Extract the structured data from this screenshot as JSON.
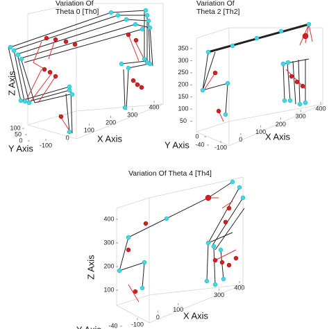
{
  "chart_data": [
    {
      "type": "line3d",
      "title": [
        "Variation Of",
        "Theta 0 [Th0]"
      ],
      "xlabel": "X Axis",
      "ylabel": "Y Axis",
      "zlabel": "Z Axis",
      "xlim": [
        -100,
        400
      ],
      "xticks": [
        -100,
        0,
        100,
        200,
        300,
        400
      ],
      "ylim": [
        0,
        100
      ],
      "yticks": [
        0,
        50,
        100
      ]
    },
    {
      "type": "line3d",
      "title": [
        "Variation Of",
        "Theta 2 [Th2]"
      ],
      "xlabel": "X Axis",
      "ylabel": "Y Axis",
      "xlim": [
        -100,
        400
      ],
      "xticks": [
        -100,
        0,
        100,
        200,
        300,
        400
      ],
      "ylim": [
        -40,
        0
      ],
      "yticks": [
        -40,
        0
      ],
      "zlim": [
        0,
        350
      ],
      "zticks": [
        50,
        100,
        150,
        200,
        250,
        300,
        350
      ]
    },
    {
      "type": "line3d",
      "title": [
        "Variation Of Theta 4 [Th4]"
      ],
      "xlabel": "X Axis",
      "ylabel": "Y Axis",
      "zlabel": "Z Axis",
      "xlim": [
        -100,
        400
      ],
      "xticks": [
        -100,
        0,
        100,
        300,
        400
      ],
      "ylim": [
        -40,
        0
      ],
      "yticks": [
        -40
      ],
      "zlim": [
        100,
        400
      ],
      "zticks": [
        100,
        200,
        300,
        400
      ]
    }
  ]
}
